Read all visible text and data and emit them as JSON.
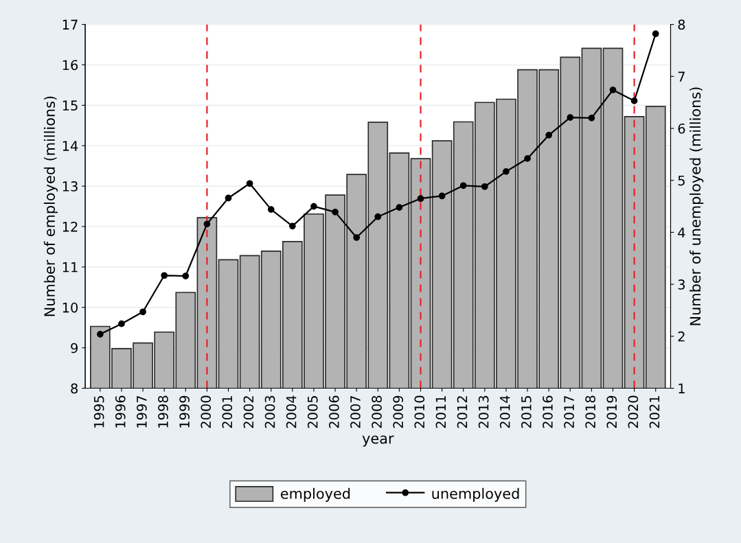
{
  "chart_data": {
    "type": "bar",
    "xlabel": "year",
    "ylabel": "Number of employed (millions)",
    "y2label": "Number of unemployed (millions)",
    "categories": [
      "1995",
      "1996",
      "1997",
      "1998",
      "1999",
      "2000",
      "2001",
      "2002",
      "2003",
      "2004",
      "2005",
      "2006",
      "2007",
      "2008",
      "2009",
      "2010",
      "2011",
      "2012",
      "2013",
      "2014",
      "2015",
      "2016",
      "2017",
      "2018",
      "2019",
      "2020",
      "2021"
    ],
    "series": [
      {
        "name": "employed",
        "color": "#b3b3b3",
        "values": [
          9.53,
          8.98,
          9.12,
          9.39,
          10.37,
          12.22,
          11.18,
          11.28,
          11.39,
          11.63,
          12.31,
          12.78,
          13.29,
          14.58,
          13.82,
          13.68,
          14.12,
          14.59,
          15.07,
          15.15,
          15.88,
          15.88,
          16.19,
          16.41,
          16.41,
          14.72,
          14.97
        ]
      },
      {
        "name": "unemployed",
        "type": "line",
        "axis": "y2",
        "color": "#000000",
        "marker": "circle",
        "line_style": "solid",
        "values": [
          2.04,
          2.24,
          2.47,
          3.17,
          3.16,
          4.16,
          4.66,
          4.94,
          4.44,
          4.12,
          4.5,
          4.39,
          3.9,
          4.3,
          4.48,
          4.65,
          4.7,
          4.9,
          4.88,
          5.17,
          5.42,
          5.87,
          6.21,
          6.2,
          6.74,
          6.53,
          7.82
        ]
      }
    ],
    "ylim": [
      8,
      17
    ],
    "yticks": [
      8,
      9,
      10,
      11,
      12,
      13,
      14,
      15,
      16,
      17
    ],
    "y2lim": [
      1,
      8
    ],
    "y2ticks": [
      1,
      2,
      3,
      4,
      5,
      6,
      7,
      8
    ],
    "ref_lines": [
      {
        "axis": "x",
        "value": "2000",
        "color": "#e8202a",
        "line_style": "dashed"
      },
      {
        "axis": "x",
        "value": "2010",
        "color": "#e8202a",
        "line_style": "dashed"
      },
      {
        "axis": "x",
        "value": "2020",
        "color": "#e8202a",
        "line_style": "dashed"
      }
    ],
    "grid": "y",
    "legend": "bottom"
  }
}
